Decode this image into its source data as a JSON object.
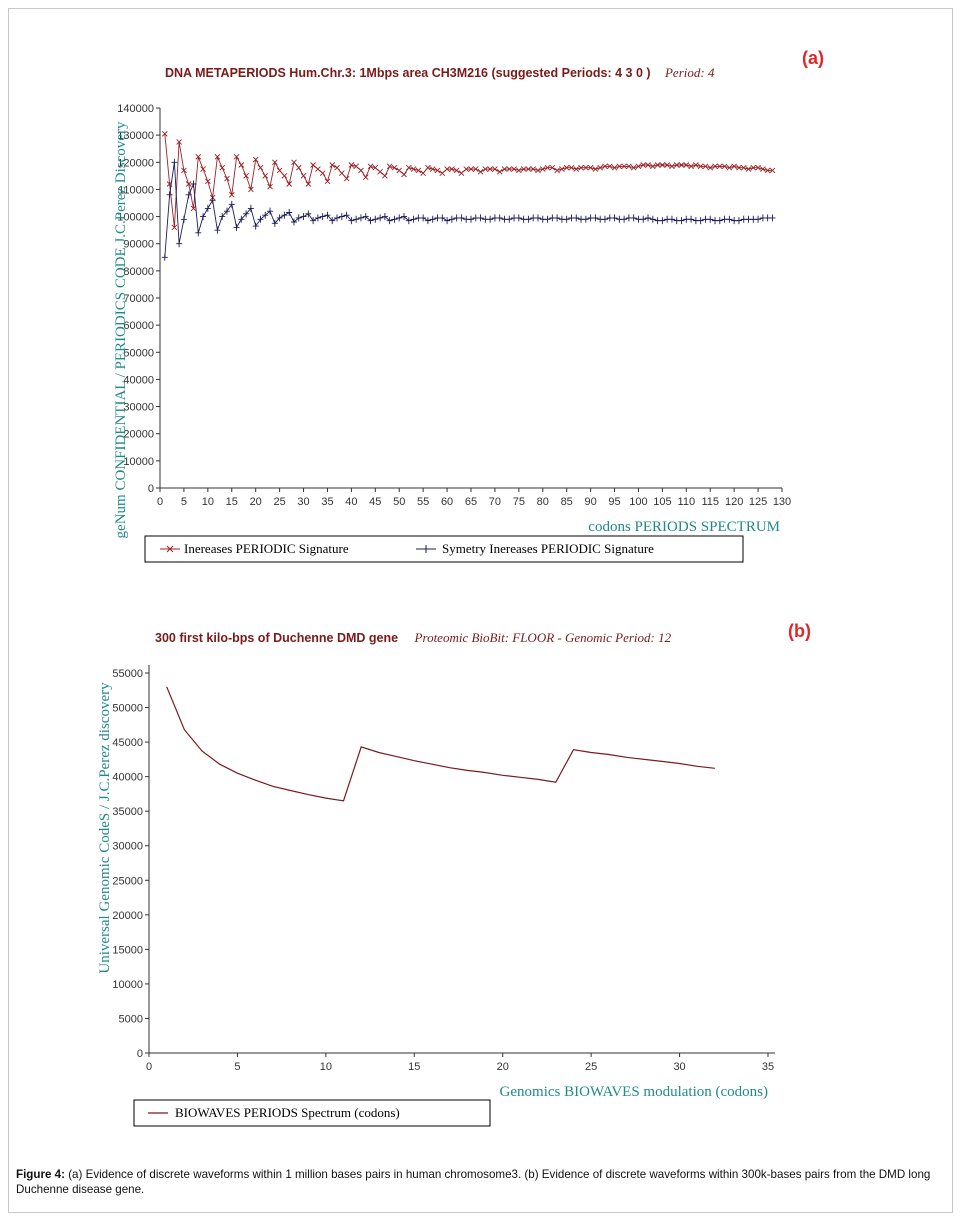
{
  "chart_data": [
    {
      "type": "line",
      "panel_label": "(a)",
      "title": "DNA METAPERIODS Hum.Chr.3: 1Mbps area CH3M216 (suggested Periods: 4 3 0 )",
      "title_suffix": "Period:  4",
      "xlabel": "codons PERIODS SPECTRUM",
      "ylabel": "geNum CONFIDENTIAL / PERIODICS CODE J.C.Perez Discovery",
      "xlim": [
        0,
        130
      ],
      "ylim": [
        0,
        140000
      ],
      "x_ticks": [
        0,
        5,
        10,
        15,
        20,
        25,
        30,
        35,
        40,
        45,
        50,
        55,
        60,
        65,
        70,
        75,
        80,
        85,
        90,
        95,
        100,
        105,
        110,
        115,
        120,
        125,
        130
      ],
      "y_ticks": [
        0,
        10000,
        20000,
        30000,
        40000,
        50000,
        60000,
        70000,
        80000,
        90000,
        100000,
        110000,
        120000,
        130000,
        140000
      ],
      "y_tick_labels": [
        "0",
        "10000",
        "20000",
        "30000",
        "40000",
        "50000",
        "60000",
        "70000",
        "80000",
        "90000",
        "100000",
        "110000",
        "120000",
        "130000",
        "140000"
      ],
      "grid": false,
      "legend_position": "bottom",
      "series": [
        {
          "name": "Inereases PERIODIC Signature",
          "color": "#9b2226",
          "marker": "x",
          "x": [
            1,
            2,
            3,
            4,
            5,
            6,
            7,
            8,
            9,
            10,
            11,
            12,
            13,
            14,
            15,
            16,
            17,
            18,
            19,
            20,
            21,
            22,
            23,
            24,
            25,
            26,
            27,
            28,
            29,
            30,
            31,
            32,
            33,
            34,
            35,
            36,
            37,
            38,
            39,
            40,
            41,
            42,
            43,
            44,
            45,
            46,
            47,
            48,
            49,
            50,
            51,
            52,
            53,
            54,
            55,
            56,
            57,
            58,
            59,
            60,
            61,
            62,
            63,
            64,
            65,
            66,
            67,
            68,
            69,
            70,
            71,
            72,
            73,
            74,
            75,
            76,
            77,
            78,
            79,
            80,
            81,
            82,
            83,
            84,
            85,
            86,
            87,
            88,
            89,
            90,
            91,
            92,
            93,
            94,
            95,
            96,
            97,
            98,
            99,
            100,
            101,
            102,
            103,
            104,
            105,
            106,
            107,
            108,
            109,
            110,
            111,
            112,
            113,
            114,
            115,
            116,
            117,
            118,
            119,
            120,
            121,
            122,
            123,
            124,
            125,
            126,
            127,
            128
          ],
          "values": [
            130500,
            112000,
            96000,
            127500,
            117000,
            112000,
            103000,
            122000,
            117500,
            113000,
            107000,
            122000,
            118000,
            114000,
            108000,
            122000,
            119000,
            115000,
            110000,
            121000,
            118000,
            115000,
            111000,
            120000,
            117000,
            115000,
            112000,
            120000,
            118000,
            115000,
            112000,
            119000,
            117500,
            116000,
            113000,
            119000,
            118000,
            116000,
            114000,
            119000,
            118500,
            117000,
            114500,
            118500,
            118000,
            116500,
            115000,
            118500,
            118000,
            117000,
            115500,
            118000,
            117500,
            117000,
            116000,
            118000,
            117500,
            117000,
            116000,
            117500,
            117500,
            117000,
            116000,
            117500,
            117500,
            117500,
            116500,
            117500,
            117500,
            117500,
            116500,
            117500,
            117500,
            117500,
            117000,
            117500,
            117500,
            117500,
            117000,
            117500,
            118000,
            118000,
            117000,
            117500,
            118000,
            118000,
            117500,
            118000,
            118000,
            118000,
            117500,
            118000,
            118500,
            118500,
            118000,
            118500,
            118500,
            118500,
            118000,
            118500,
            119000,
            119000,
            118500,
            119000,
            119000,
            119000,
            118500,
            119000,
            119000,
            119000,
            118500,
            119000,
            118500,
            118500,
            118000,
            118500,
            118500,
            118500,
            118000,
            118500,
            118000,
            118000,
            117500,
            118000,
            118000,
            117500,
            117000,
            117000
          ]
        },
        {
          "name": "Symetry Inereases PERIODIC Signature",
          "color": "#1c1c5a",
          "marker": "+",
          "x": [
            1,
            2,
            3,
            4,
            5,
            6,
            7,
            8,
            9,
            10,
            11,
            12,
            13,
            14,
            15,
            16,
            17,
            18,
            19,
            20,
            21,
            22,
            23,
            24,
            25,
            26,
            27,
            28,
            29,
            30,
            31,
            32,
            33,
            34,
            35,
            36,
            37,
            38,
            39,
            40,
            41,
            42,
            43,
            44,
            45,
            46,
            47,
            48,
            49,
            50,
            51,
            52,
            53,
            54,
            55,
            56,
            57,
            58,
            59,
            60,
            61,
            62,
            63,
            64,
            65,
            66,
            67,
            68,
            69,
            70,
            71,
            72,
            73,
            74,
            75,
            76,
            77,
            78,
            79,
            80,
            81,
            82,
            83,
            84,
            85,
            86,
            87,
            88,
            89,
            90,
            91,
            92,
            93,
            94,
            95,
            96,
            97,
            98,
            99,
            100,
            101,
            102,
            103,
            104,
            105,
            106,
            107,
            108,
            109,
            110,
            111,
            112,
            113,
            114,
            115,
            116,
            117,
            118,
            119,
            120,
            121,
            122,
            123,
            124,
            125,
            126,
            127,
            128
          ],
          "values": [
            85000,
            108000,
            120000,
            90000,
            99000,
            108000,
            112000,
            94000,
            100000,
            103000,
            106000,
            95000,
            100000,
            102000,
            104500,
            96000,
            99000,
            101000,
            103000,
            96500,
            99000,
            100500,
            102000,
            97500,
            99500,
            100500,
            101500,
            98000,
            99500,
            100000,
            101000,
            98500,
            99500,
            100000,
            100500,
            98500,
            99500,
            100000,
            100500,
            98500,
            99000,
            99500,
            100000,
            98500,
            99000,
            99500,
            100000,
            98500,
            99000,
            99500,
            100000,
            98500,
            99000,
            99500,
            99500,
            98500,
            99000,
            99500,
            99500,
            98500,
            99000,
            99500,
            99500,
            99000,
            99000,
            99500,
            99500,
            99000,
            99000,
            99500,
            99500,
            99000,
            99000,
            99500,
            99500,
            99000,
            99000,
            99500,
            99500,
            99000,
            99000,
            99500,
            99500,
            99000,
            99000,
            99500,
            99500,
            99000,
            99000,
            99500,
            99500,
            99000,
            99000,
            99500,
            99500,
            99000,
            99000,
            99500,
            99500,
            99000,
            99000,
            99500,
            99000,
            98500,
            98500,
            99000,
            99000,
            98500,
            98500,
            99000,
            99000,
            98500,
            98500,
            99000,
            99000,
            98500,
            98500,
            99000,
            99000,
            98500,
            98500,
            99000,
            99000,
            99000,
            99000,
            99500,
            99500,
            99500
          ]
        }
      ]
    },
    {
      "type": "line",
      "panel_label": "(b)",
      "title": "300 first kilo-bps of Duchenne DMD gene",
      "title_suffix": "Proteomic BioBit:  FLOOR  - Genomic Period:  12",
      "xlabel": "Genomics BIOWAVES modulation (codons)",
      "ylabel": "Universal Genomic CodeS / J.C.Perez discovery",
      "xlim": [
        0,
        35
      ],
      "ylim": [
        0,
        55000
      ],
      "x_ticks": [
        0,
        5,
        10,
        15,
        20,
        25,
        30,
        35
      ],
      "y_ticks": [
        0,
        5000,
        10000,
        15000,
        20000,
        25000,
        30000,
        35000,
        40000,
        45000,
        50000,
        55000
      ],
      "y_tick_labels": [
        "0",
        "5000",
        "10000",
        "15000",
        "20000",
        "25000",
        "30000",
        "35000",
        "40000",
        "45000",
        "50000",
        "55000"
      ],
      "grid": false,
      "legend_position": "bottom",
      "series": [
        {
          "name": "BIOWAVES PERIODS Spectrum (codons)",
          "color": "#7a1a22",
          "x": [
            1,
            2,
            3,
            4,
            5,
            6,
            7,
            8,
            9,
            10,
            11,
            12,
            13,
            14,
            15,
            16,
            17,
            18,
            19,
            20,
            21,
            22,
            23,
            24,
            25,
            26,
            27,
            28,
            29,
            30,
            31,
            32
          ],
          "values": [
            53000,
            46800,
            43700,
            41800,
            40500,
            39500,
            38600,
            38000,
            37400,
            36900,
            36500,
            44300,
            43500,
            42900,
            42300,
            41800,
            41300,
            40900,
            40600,
            40200,
            39900,
            39600,
            39200,
            43900,
            43500,
            43200,
            42800,
            42500,
            42200,
            41900,
            41500,
            41200
          ]
        }
      ]
    }
  ],
  "caption": {
    "label": "Figure 4:",
    "text": " (a) Evidence of discrete waveforms within 1 million bases pairs in human chromosome3.  (b) Evidence of discrete waveforms within 300k-bases pairs from the DMD long Duchenne disease gene."
  }
}
